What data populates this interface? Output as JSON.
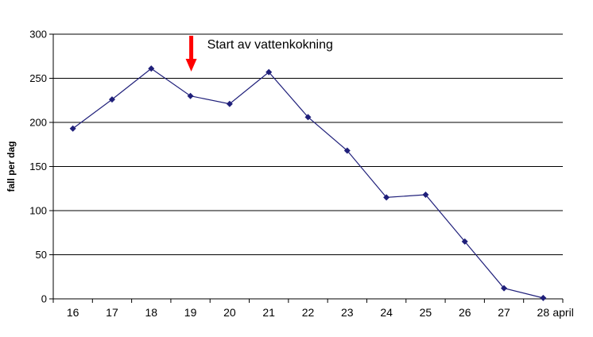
{
  "chart_data": {
    "type": "line",
    "title": "",
    "xlabel": "",
    "ylabel": "fall per dag",
    "x_unit_label": "april",
    "categories": [
      "16",
      "17",
      "18",
      "19",
      "20",
      "21",
      "22",
      "23",
      "24",
      "25",
      "26",
      "27",
      "28"
    ],
    "series": [
      {
        "values": [
          193,
          226,
          261,
          230,
          221,
          257,
          206,
          168,
          115,
          118,
          65,
          12,
          1
        ],
        "color": "#1f1f7a"
      }
    ],
    "ylim": [
      0,
      300
    ],
    "yticks": [
      0,
      50,
      100,
      150,
      200,
      250,
      300
    ],
    "grid": "horizontal",
    "annotations": [
      {
        "text": "Start av vattenkokning",
        "at_category": "19",
        "arrow_color": "#ff0000"
      }
    ]
  }
}
